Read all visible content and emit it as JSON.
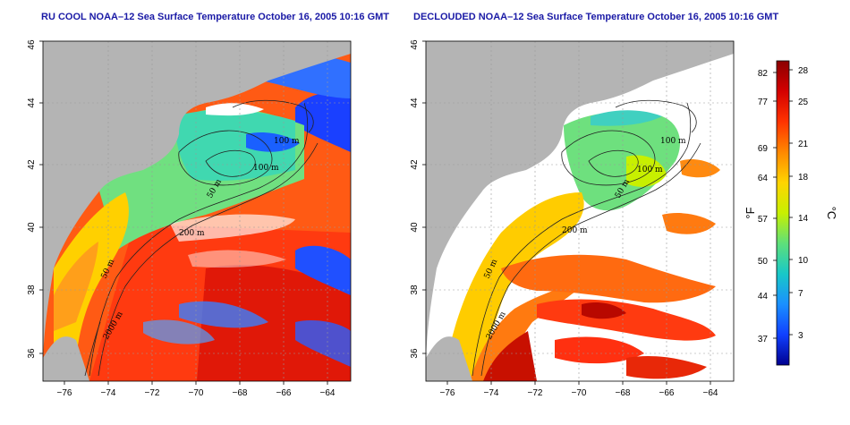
{
  "panels": [
    {
      "title": "RU COOL NOAA–12 Sea Surface Temperature October 16, 2005 10:16 GMT",
      "contour_labels": [
        "100 m",
        "100 m",
        "50 m",
        "200 m",
        "50 m",
        "2000 m"
      ]
    },
    {
      "title": "DECLOUDED NOAA–12 Sea Surface Temperature October 16, 2005 10:16 GMT",
      "contour_labels": [
        "100 m",
        "100 m",
        "50 m",
        "200 m",
        "50 m",
        "2000 m"
      ]
    }
  ],
  "axes": {
    "longitude_ticks": [
      "−76",
      "−74",
      "−72",
      "−70",
      "−68",
      "−66",
      "−64"
    ],
    "latitude_ticks": [
      "36",
      "38",
      "40",
      "42",
      "44",
      "46"
    ]
  },
  "colorbar": {
    "fahrenheit_label": "°F",
    "celsius_label": "°C",
    "fahrenheit_ticks": [
      "82",
      "77",
      "69",
      "64",
      "57",
      "50",
      "44",
      "37"
    ],
    "celsius_ticks": [
      "28",
      "25",
      "21",
      "18",
      "14",
      "10",
      "7",
      "3"
    ],
    "colors": [
      "#8b0000",
      "#d40000",
      "#ff3300",
      "#ff8800",
      "#ffd400",
      "#c8f000",
      "#5ee07a",
      "#18c8c8",
      "#1a90ff",
      "#1040ff",
      "#000090"
    ]
  },
  "colors": {
    "land": "#b4b4b4",
    "title": "#1a1aa6",
    "cloud": "#ffffff"
  }
}
